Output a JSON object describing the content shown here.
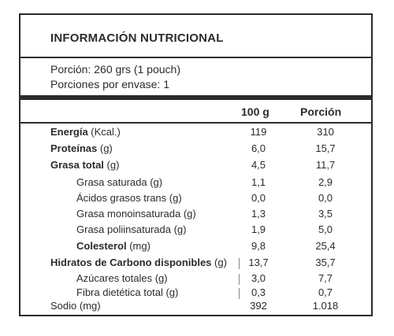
{
  "title": "INFORMACIÓN NUTRICIONAL",
  "portion_size": "Porción: 260 grs (1 pouch)",
  "servings": "Porciones por envase: 1",
  "columns": {
    "per100": "100 g",
    "portion": "Porción"
  },
  "rows": [
    {
      "bold": "Energía",
      "unit": " (Kcal.)",
      "v1": "119",
      "v2": "310"
    },
    {
      "bold": "Proteínas",
      "unit": " (g)",
      "v1": "6,0",
      "v2": "15,7"
    },
    {
      "bold": "Grasa total",
      "unit": " (g)",
      "v1": "4,5",
      "v2": "11,7"
    },
    {
      "plain": "Grasa saturada (g)",
      "v1": "1,1",
      "v2": "2,9"
    },
    {
      "plain": "Ácidos grasos trans (g)",
      "v1": "0,0",
      "v2": "0,0"
    },
    {
      "plain": "Grasa monoinsaturada (g)",
      "v1": "1,3",
      "v2": "3,5"
    },
    {
      "plain": "Grasa poliinsaturada (g)",
      "v1": "1,9",
      "v2": "5,0"
    },
    {
      "bold": "Colesterol",
      "unit": " (mg)",
      "v1": "9,8",
      "v2": "25,4"
    },
    {
      "bold": "Hidratos de Carbono disponibles",
      "unit": " (g)",
      "v1": "13,7",
      "v2": "35,7"
    },
    {
      "plain": "Azúcares totales (g)",
      "v1": "3,0",
      "v2": "7,7"
    },
    {
      "plain": "Fibra dietética total (g)",
      "v1": "0,3",
      "v2": "0,7"
    },
    {
      "plain": "Sodio (mg)",
      "v1": "392",
      "v2": "1.018"
    }
  ]
}
